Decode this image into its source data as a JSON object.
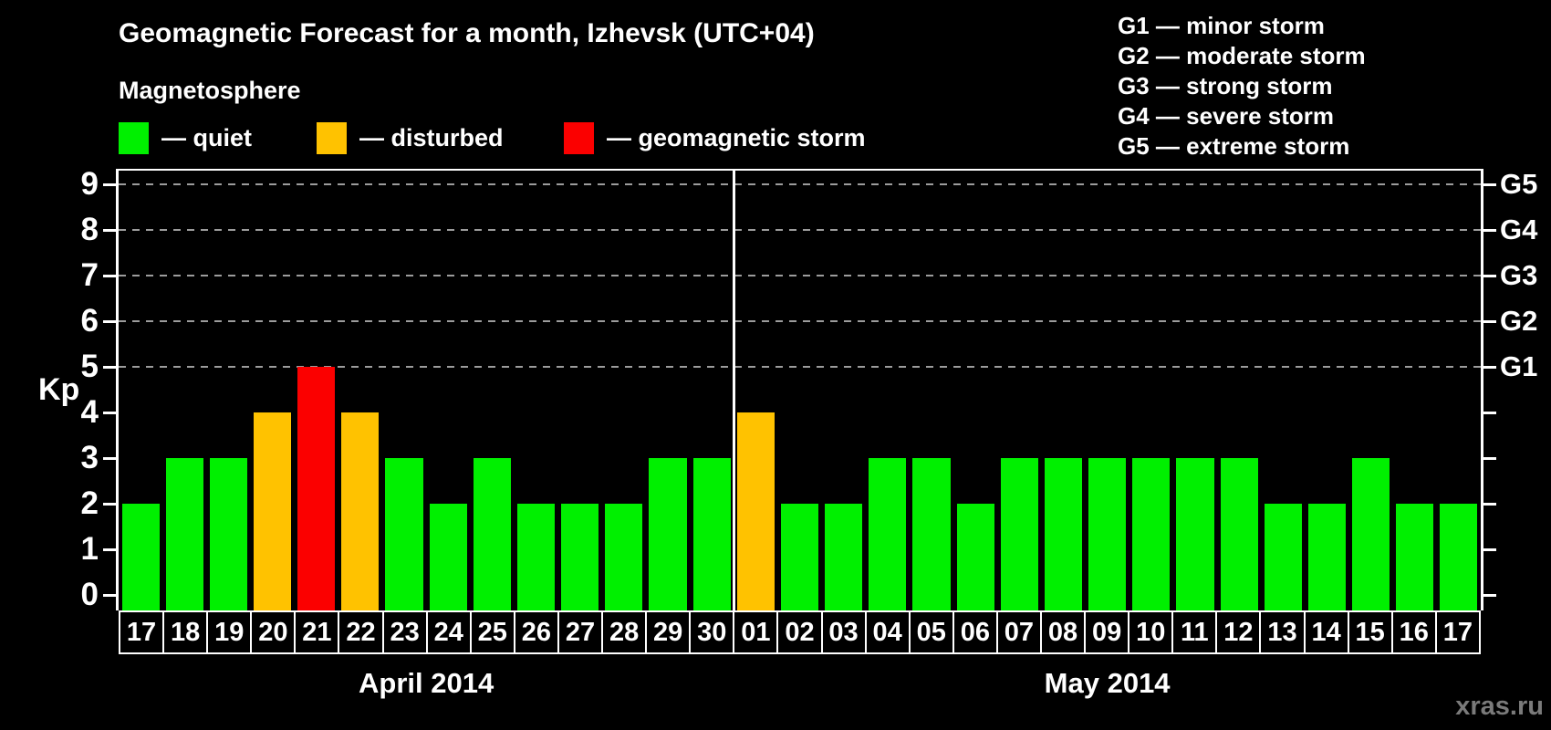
{
  "header": {
    "title": "Geomagnetic Forecast for a month, Izhevsk (UTC+04)"
  },
  "legend": {
    "heading": "Magnetosphere",
    "items": [
      {
        "label": "— quiet",
        "status": "quiet",
        "color": "#00f000"
      },
      {
        "label": "— disturbed",
        "status": "disturbed",
        "color": "#ffc200"
      },
      {
        "label": "— geomagnetic storm",
        "status": "storm",
        "color": "#fb0000"
      }
    ]
  },
  "g_legend": {
    "items": [
      "G1 — minor storm",
      "G2 — moderate storm",
      "G3 — strong storm",
      "G4 — severe storm",
      "G5 — extreme storm"
    ]
  },
  "footer": {
    "watermark": "xras.ru"
  },
  "chart_data": {
    "type": "bar",
    "title": "Geomagnetic Forecast for a month, Izhevsk (UTC+04)",
    "ylabel": "Kp",
    "ylim": [
      0,
      9
    ],
    "y_ticks": [
      0,
      1,
      2,
      3,
      4,
      5,
      6,
      7,
      8,
      9
    ],
    "gridlines_at": [
      5,
      6,
      7,
      8,
      9
    ],
    "grid": "dashed horizontal lines at storm levels only",
    "legend_position": "top",
    "right_axis": [
      {
        "label": "G1",
        "kp": 5
      },
      {
        "label": "G2",
        "kp": 6
      },
      {
        "label": "G3",
        "kp": 7
      },
      {
        "label": "G4",
        "kp": 8
      },
      {
        "label": "G5",
        "kp": 9
      }
    ],
    "status_colors": {
      "quiet": "#00f000",
      "disturbed": "#ffc200",
      "storm": "#fb0000"
    },
    "months": [
      {
        "label": "April 2014",
        "days": [
          {
            "day": "17",
            "kp": 2,
            "status": "quiet"
          },
          {
            "day": "18",
            "kp": 3,
            "status": "quiet"
          },
          {
            "day": "19",
            "kp": 3,
            "status": "quiet"
          },
          {
            "day": "20",
            "kp": 4,
            "status": "disturbed"
          },
          {
            "day": "21",
            "kp": 5,
            "status": "storm"
          },
          {
            "day": "22",
            "kp": 4,
            "status": "disturbed"
          },
          {
            "day": "23",
            "kp": 3,
            "status": "quiet"
          },
          {
            "day": "24",
            "kp": 2,
            "status": "quiet"
          },
          {
            "day": "25",
            "kp": 3,
            "status": "quiet"
          },
          {
            "day": "26",
            "kp": 2,
            "status": "quiet"
          },
          {
            "day": "27",
            "kp": 2,
            "status": "quiet"
          },
          {
            "day": "28",
            "kp": 2,
            "status": "quiet"
          },
          {
            "day": "29",
            "kp": 3,
            "status": "quiet"
          },
          {
            "day": "30",
            "kp": 3,
            "status": "quiet"
          }
        ]
      },
      {
        "label": "May 2014",
        "days": [
          {
            "day": "01",
            "kp": 4,
            "status": "disturbed"
          },
          {
            "day": "02",
            "kp": 2,
            "status": "quiet"
          },
          {
            "day": "03",
            "kp": 2,
            "status": "quiet"
          },
          {
            "day": "04",
            "kp": 3,
            "status": "quiet"
          },
          {
            "day": "05",
            "kp": 3,
            "status": "quiet"
          },
          {
            "day": "06",
            "kp": 2,
            "status": "quiet"
          },
          {
            "day": "07",
            "kp": 3,
            "status": "quiet"
          },
          {
            "day": "08",
            "kp": 3,
            "status": "quiet"
          },
          {
            "day": "09",
            "kp": 3,
            "status": "quiet"
          },
          {
            "day": "10",
            "kp": 3,
            "status": "quiet"
          },
          {
            "day": "11",
            "kp": 3,
            "status": "quiet"
          },
          {
            "day": "12",
            "kp": 3,
            "status": "quiet"
          },
          {
            "day": "13",
            "kp": 2,
            "status": "quiet"
          },
          {
            "day": "14",
            "kp": 2,
            "status": "quiet"
          },
          {
            "day": "15",
            "kp": 3,
            "status": "quiet"
          },
          {
            "day": "16",
            "kp": 2,
            "status": "quiet"
          },
          {
            "day": "17",
            "kp": 2,
            "status": "quiet"
          }
        ]
      }
    ]
  }
}
